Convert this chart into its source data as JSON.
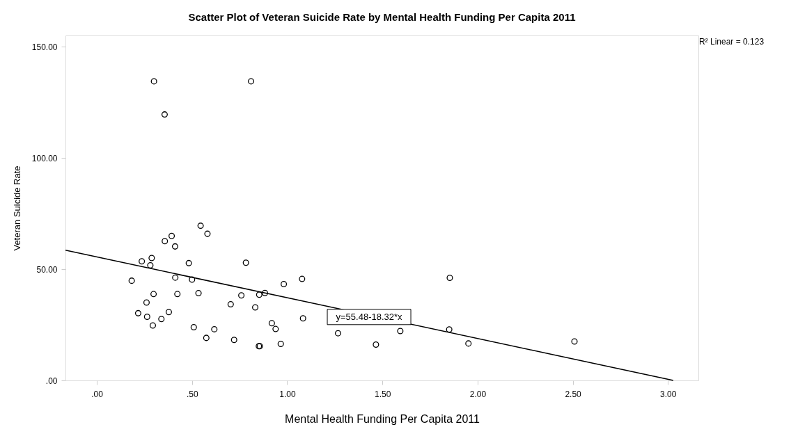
{
  "chart_data": {
    "type": "scatter",
    "title": "Scatter Plot of Veteran Suicide Rate by Mental Health Funding Per Capita 2011",
    "xlabel": "Mental Health Funding Per Capita 2011",
    "ylabel": "Veteran Suicide Rate",
    "xlim": [
      -0.165,
      3.16
    ],
    "ylim": [
      0,
      155
    ],
    "xticks": [
      {
        "value": 0,
        "label": ".00"
      },
      {
        "value": 0.5,
        "label": ".50"
      },
      {
        "value": 1,
        "label": "1.00"
      },
      {
        "value": 1.5,
        "label": "1.50"
      },
      {
        "value": 2,
        "label": "2.00"
      },
      {
        "value": 2.5,
        "label": "2.50"
      },
      {
        "value": 3,
        "label": "3.00"
      }
    ],
    "yticks": [
      {
        "value": 0,
        "label": ".00"
      },
      {
        "value": 50,
        "label": "50.00"
      },
      {
        "value": 100,
        "label": "100.00"
      },
      {
        "value": 150,
        "label": "150.00"
      }
    ],
    "grid": false,
    "series": [
      {
        "marker": "circle",
        "color": "#000000",
        "x": [
          0.3,
          0.81,
          0.356,
          0.545,
          0.581,
          0.393,
          0.357,
          0.411,
          0.288,
          0.236,
          0.281,
          0.483,
          0.783,
          0.183,
          0.412,
          0.5,
          1.078,
          0.982,
          0.298,
          0.423,
          0.534,
          0.759,
          0.853,
          0.883,
          0.261,
          0.703,
          0.832,
          0.217,
          0.378,
          0.264,
          0.339,
          0.294,
          1.083,
          0.919,
          0.939,
          0.509,
          0.617,
          0.575,
          0.721,
          0.851,
          0.856,
          0.966,
          1.267,
          1.466,
          1.594,
          1.854,
          1.851,
          1.952,
          2.509
        ],
        "values": [
          134.4,
          134.4,
          119.5,
          69.5,
          65.9,
          64.9,
          62.6,
          60.2,
          55.0,
          53.5,
          51.7,
          52.7,
          52.9,
          44.8,
          46.2,
          45.3,
          45.6,
          43.3,
          38.8,
          38.8,
          39.2,
          38.2,
          38.5,
          39.3,
          35.0,
          34.2,
          32.8,
          30.2,
          30.7,
          28.6,
          27.6,
          24.7,
          27.9,
          25.7,
          23.1,
          23.9,
          23.0,
          19.1,
          18.2,
          15.4,
          15.4,
          16.4,
          21.2,
          16.1,
          22.2,
          46.1,
          22.9,
          16.6,
          17.5
        ]
      },
      {
        "type": "line",
        "color": "#000000",
        "x": [
          -0.165,
          3.028
        ],
        "values": [
          58.5,
          0
        ]
      }
    ],
    "annotations": [
      {
        "text": "y=55.48-18.32*x",
        "x": 1.43,
        "y": 28.5
      },
      "R² Linear = 0.123"
    ]
  }
}
